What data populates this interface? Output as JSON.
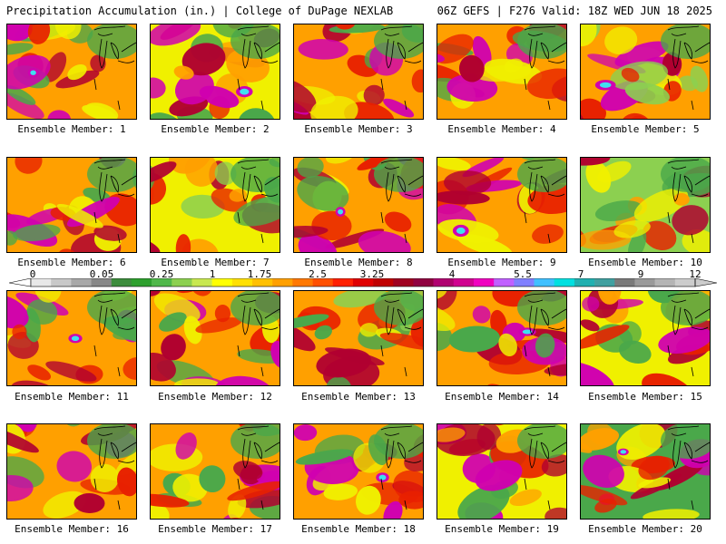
{
  "header": {
    "left": "Precipitation Accumulation (in.) | College of DuPage NEXLAB",
    "right": "06Z GEFS | F276 Valid: 18Z WED JUN 18 2025"
  },
  "members": [
    {
      "caption": "Ensemble Member: 1"
    },
    {
      "caption": "Ensemble Member: 2"
    },
    {
      "caption": "Ensemble Member: 3"
    },
    {
      "caption": "Ensemble Member: 4"
    },
    {
      "caption": "Ensemble Member: 5"
    },
    {
      "caption": "Ensemble Member: 6"
    },
    {
      "caption": "Ensemble Member: 7"
    },
    {
      "caption": "Ensemble Member: 8"
    },
    {
      "caption": "Ensemble Member: 9"
    },
    {
      "caption": "Ensemble Member: 10"
    },
    {
      "caption": "Ensemble Member: 11"
    },
    {
      "caption": "Ensemble Member: 12"
    },
    {
      "caption": "Ensemble Member: 13"
    },
    {
      "caption": "Ensemble Member: 14"
    },
    {
      "caption": "Ensemble Member: 15"
    },
    {
      "caption": "Ensemble Member: 16"
    },
    {
      "caption": "Ensemble Member: 17"
    },
    {
      "caption": "Ensemble Member: 18"
    },
    {
      "caption": "Ensemble Member: 19"
    },
    {
      "caption": "Ensemble Member: 20"
    }
  ],
  "colorbar": {
    "tick_labels": [
      "0",
      "0.05",
      "0.25",
      "1",
      "1.75",
      "2.5",
      "3.25",
      "4",
      "5.5",
      "7",
      "9",
      "12"
    ],
    "colors": [
      "#e8e8e8",
      "#c8c8c8",
      "#a8a8a8",
      "#888888",
      "#3c8c3c",
      "#2ea02e",
      "#50b84a",
      "#8cd050",
      "#c8e850",
      "#ffff00",
      "#ffe000",
      "#ffc000",
      "#ffa000",
      "#ff7800",
      "#ff5000",
      "#ff2000",
      "#e00000",
      "#c00000",
      "#a00020",
      "#900040",
      "#b00070",
      "#d00090",
      "#f000c0",
      "#c060ff",
      "#8080ff",
      "#40c0ff",
      "#00e0e0",
      "#20b0b0",
      "#40a0a0",
      "#7a7a7a",
      "#9a9a9a",
      "#b4b4b4",
      "#cccccc"
    ]
  },
  "map_colors": {
    "low": "#4aa84a",
    "light": "#8cd050",
    "yellow": "#f0f000",
    "orange": "#ffa000",
    "red": "#e82000",
    "darkred": "#b00030",
    "magenta": "#d000b0",
    "cyan": "#40e0f0",
    "coast": "#000000"
  }
}
